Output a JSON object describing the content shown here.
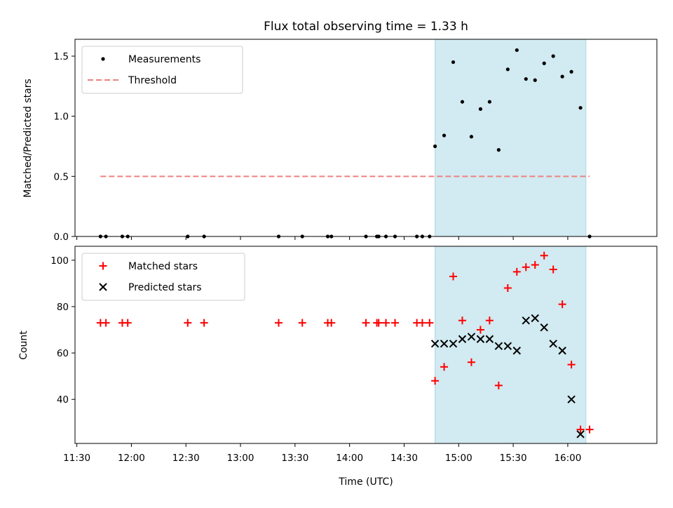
{
  "chart_data": {
    "title": "Flux total observing time = 1.33 h",
    "xlabel": "Time (UTC)",
    "x_ticks": [
      "11:30",
      "12:00",
      "12:30",
      "13:00",
      "13:30",
      "14:00",
      "14:30",
      "15:00",
      "15:30",
      "16:00"
    ],
    "xlim": [
      "11:29",
      "16:49"
    ],
    "highlight_span": [
      "14:47",
      "16:10"
    ],
    "highlight_color": "#add8e6",
    "panels": [
      {
        "type": "scatter",
        "ylabel": "Matched/Predicted stars",
        "ylim": [
          0,
          1.64
        ],
        "y_ticks": [
          "0.0",
          "0.5",
          "1.0",
          "1.5"
        ],
        "legend_position": "top-left",
        "series": [
          {
            "name": "Measurements",
            "marker": "dot",
            "color": "#000000",
            "points": [
              [
                "11:43",
                0
              ],
              [
                "11:46",
                0
              ],
              [
                "11:55",
                0
              ],
              [
                "11:58",
                0
              ],
              [
                "12:31",
                0
              ],
              [
                "12:40",
                0
              ],
              [
                "13:21",
                0
              ],
              [
                "13:34",
                0
              ],
              [
                "13:48",
                0
              ],
              [
                "13:50",
                0
              ],
              [
                "14:09",
                0
              ],
              [
                "14:15",
                0
              ],
              [
                "14:16",
                0
              ],
              [
                "14:20",
                0
              ],
              [
                "14:25",
                0
              ],
              [
                "14:37",
                0
              ],
              [
                "14:40",
                0
              ],
              [
                "14:44",
                0
              ],
              [
                "14:47",
                0.75
              ],
              [
                "14:52",
                0.84
              ],
              [
                "14:57",
                1.45
              ],
              [
                "15:02",
                1.12
              ],
              [
                "15:07",
                0.83
              ],
              [
                "15:12",
                1.06
              ],
              [
                "15:17",
                1.12
              ],
              [
                "15:22",
                0.72
              ],
              [
                "15:27",
                1.39
              ],
              [
                "15:32",
                1.55
              ],
              [
                "15:37",
                1.31
              ],
              [
                "15:42",
                1.3
              ],
              [
                "15:47",
                1.44
              ],
              [
                "15:52",
                1.5
              ],
              [
                "15:57",
                1.33
              ],
              [
                "16:02",
                1.37
              ],
              [
                "16:07",
                1.07
              ],
              [
                "16:12",
                0
              ]
            ]
          },
          {
            "name": "Threshold",
            "style": "dashed",
            "color": "#f08080",
            "points": [
              [
                "11:43",
                0.5
              ],
              [
                "16:12",
                0.5
              ]
            ]
          }
        ]
      },
      {
        "type": "scatter",
        "ylabel": "Count",
        "ylim": [
          21,
          106
        ],
        "y_ticks": [
          "40",
          "60",
          "80",
          "100"
        ],
        "legend_position": "top-left",
        "series": [
          {
            "name": "Matched stars",
            "marker": "plus",
            "color": "#ff0000",
            "points": [
              [
                "11:43",
                73
              ],
              [
                "11:46",
                73
              ],
              [
                "11:55",
                73
              ],
              [
                "11:58",
                73
              ],
              [
                "12:31",
                73
              ],
              [
                "12:40",
                73
              ],
              [
                "13:21",
                73
              ],
              [
                "13:34",
                73
              ],
              [
                "13:48",
                73
              ],
              [
                "13:50",
                73
              ],
              [
                "14:09",
                73
              ],
              [
                "14:15",
                73
              ],
              [
                "14:16",
                73
              ],
              [
                "14:20",
                73
              ],
              [
                "14:25",
                73
              ],
              [
                "14:37",
                73
              ],
              [
                "14:40",
                73
              ],
              [
                "14:44",
                73
              ],
              [
                "14:47",
                48
              ],
              [
                "14:52",
                54
              ],
              [
                "14:57",
                93
              ],
              [
                "15:02",
                74
              ],
              [
                "15:07",
                56
              ],
              [
                "15:12",
                70
              ],
              [
                "15:17",
                74
              ],
              [
                "15:22",
                46
              ],
              [
                "15:27",
                88
              ],
              [
                "15:32",
                95
              ],
              [
                "15:37",
                97
              ],
              [
                "15:42",
                98
              ],
              [
                "15:47",
                102
              ],
              [
                "15:52",
                96
              ],
              [
                "15:57",
                81
              ],
              [
                "16:02",
                55
              ],
              [
                "16:07",
                27
              ],
              [
                "16:12",
                27
              ]
            ]
          },
          {
            "name": "Predicted stars",
            "marker": "x",
            "color": "#000000",
            "points": [
              [
                "14:47",
                64
              ],
              [
                "14:52",
                64
              ],
              [
                "14:57",
                64
              ],
              [
                "15:02",
                66
              ],
              [
                "15:07",
                67
              ],
              [
                "15:12",
                66
              ],
              [
                "15:17",
                66
              ],
              [
                "15:22",
                63
              ],
              [
                "15:27",
                63
              ],
              [
                "15:32",
                61
              ],
              [
                "15:37",
                74
              ],
              [
                "15:42",
                75
              ],
              [
                "15:47",
                71
              ],
              [
                "15:52",
                64
              ],
              [
                "15:57",
                61
              ],
              [
                "16:02",
                40
              ],
              [
                "16:07",
                25
              ]
            ]
          }
        ]
      }
    ]
  }
}
